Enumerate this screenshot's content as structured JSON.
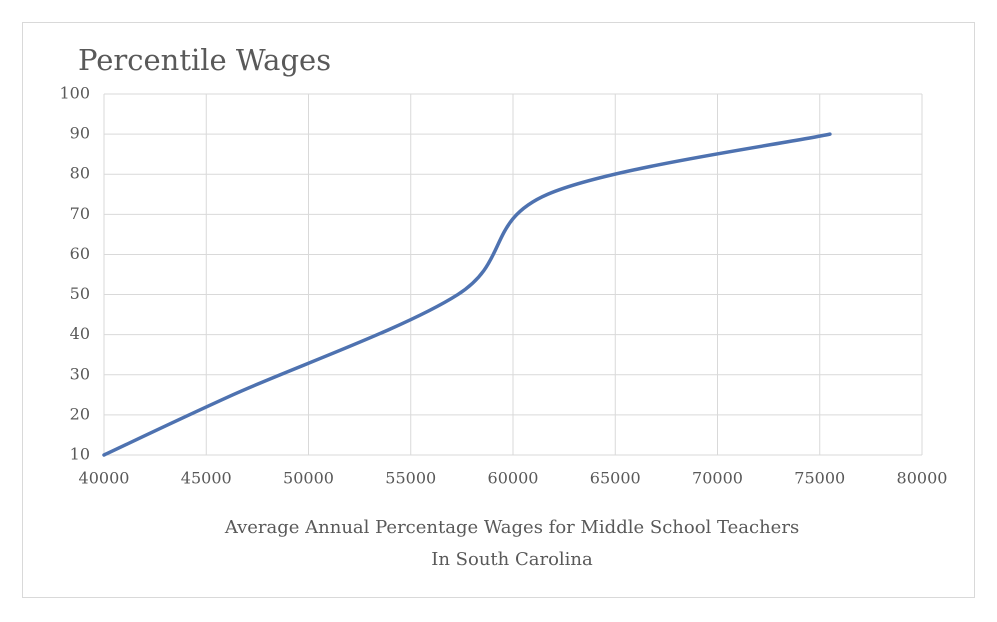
{
  "chart_data": {
    "type": "line",
    "title": "Percentile Wages",
    "x_label": [
      "Average Annual Percentage Wages for Middle School Teachers",
      "In South Carolina"
    ],
    "x": [
      40000,
      46300,
      57300,
      61700,
      75500
    ],
    "series": [
      {
        "color": "#4e72b0",
        "values": [
          10,
          25,
          50,
          75,
          90
        ]
      }
    ],
    "smooth": true,
    "xlim": [
      40000,
      80000
    ],
    "xticks": [
      40000,
      45000,
      50000,
      55000,
      60000,
      65000,
      70000,
      75000,
      80000
    ],
    "ylim": [
      10,
      100
    ],
    "yticks": [
      10,
      20,
      30,
      40,
      50,
      60,
      70,
      80,
      90,
      100
    ],
    "grid": true
  }
}
